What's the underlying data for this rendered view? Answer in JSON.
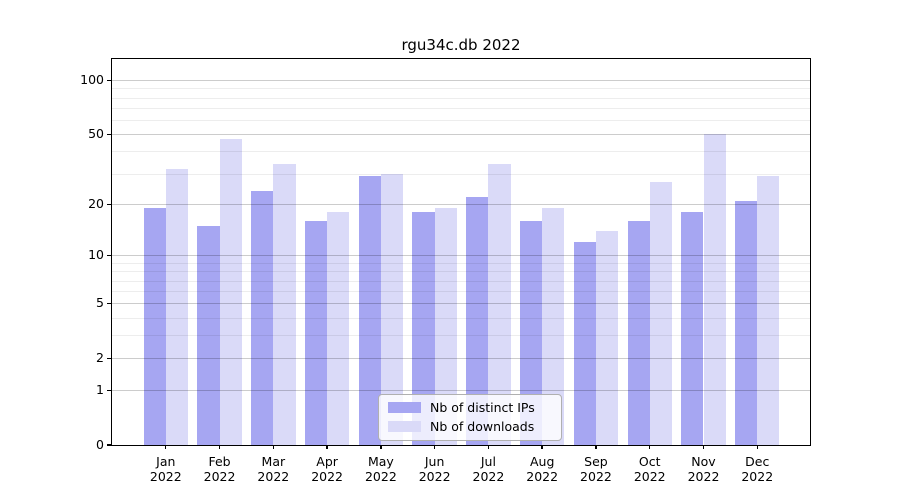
{
  "title": "rgu34c.db 2022",
  "chart_data": {
    "type": "bar",
    "title": "rgu34c.db 2022",
    "categories": [
      "Jan",
      "Feb",
      "Mar",
      "Apr",
      "May",
      "Jun",
      "Jul",
      "Aug",
      "Sep",
      "Oct",
      "Nov",
      "Dec"
    ],
    "category_year": "2022",
    "series": [
      {
        "name": "Nb of distinct IPs",
        "color": "#a6a6f2",
        "values": [
          19,
          15,
          24,
          16,
          29,
          18,
          22,
          16,
          12,
          16,
          18,
          21
        ]
      },
      {
        "name": "Nb of downloads",
        "color": "#dadaf8",
        "values": [
          32,
          47,
          34,
          18,
          30,
          19,
          34,
          19,
          14,
          27,
          50,
          29
        ]
      }
    ],
    "yscale": "log1p",
    "ylim": [
      0,
      131
    ],
    "yticks": [
      0,
      1,
      2,
      5,
      10,
      20,
      50,
      100
    ],
    "ytick_labels": [
      "0",
      "1",
      "2",
      "5",
      "10",
      "20",
      "50",
      "100"
    ],
    "minor_gridlines": [
      3,
      4,
      6,
      7,
      8,
      9,
      30,
      40,
      60,
      70,
      80,
      90
    ],
    "grid": true,
    "legend": {
      "position": "lower center",
      "items": [
        "Nb of distinct IPs",
        "Nb of downloads"
      ]
    }
  }
}
